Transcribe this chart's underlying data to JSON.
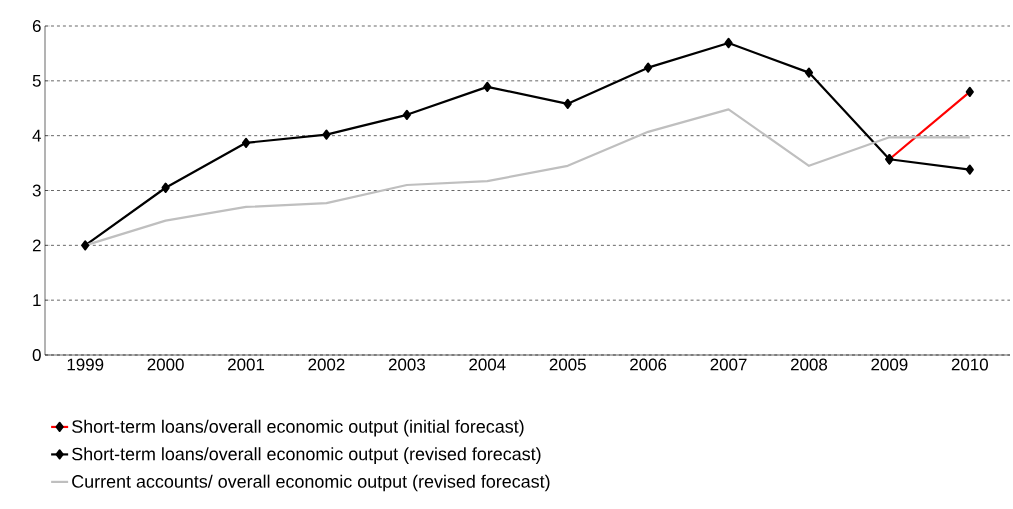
{
  "chart_data": {
    "type": "line",
    "categories": [
      "1999",
      "2000",
      "2001",
      "2002",
      "2003",
      "2004",
      "2005",
      "2006",
      "2007",
      "2008",
      "2009",
      "2010"
    ],
    "series": [
      {
        "name": "Short-term loans/overall economic output (initial forecast)",
        "color": "#ff0000",
        "marker": "diamond",
        "values": [
          null,
          null,
          null,
          null,
          null,
          null,
          null,
          null,
          null,
          null,
          3.57,
          4.8
        ]
      },
      {
        "name": "Short-term loans/overall economic output (revised forecast)",
        "color": "#000000",
        "marker": "diamond",
        "values": [
          2.0,
          3.05,
          3.87,
          4.02,
          4.38,
          4.89,
          4.58,
          5.24,
          5.69,
          5.15,
          3.57,
          3.38
        ]
      },
      {
        "name": "Current accounts/ overall economic output (revised forecast)",
        "color": "#bfbfbf",
        "values": [
          2.0,
          2.45,
          2.7,
          2.77,
          3.1,
          3.17,
          3.45,
          4.07,
          4.48,
          3.45,
          3.97,
          3.97
        ]
      }
    ],
    "ylim": [
      0,
      6
    ],
    "yticks": [
      0,
      1,
      2,
      3,
      4,
      5,
      6
    ],
    "grid": "y",
    "legend": "bottom"
  }
}
